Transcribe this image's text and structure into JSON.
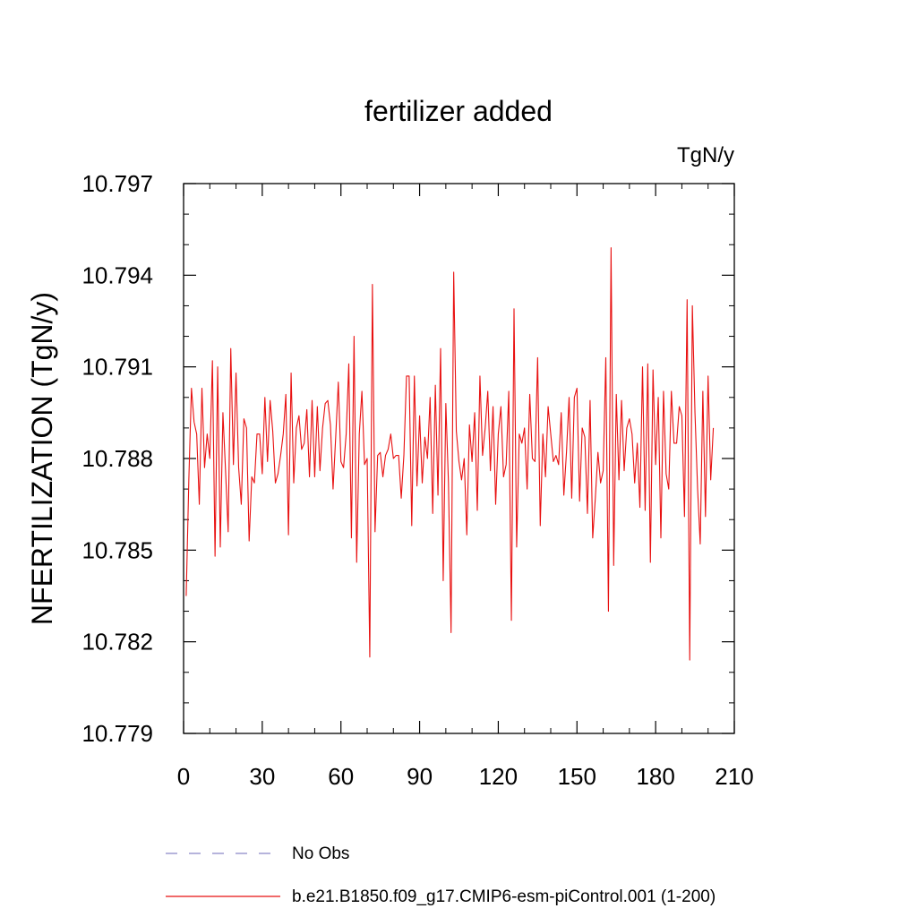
{
  "chart_data": {
    "type": "line",
    "title": "fertilizer added",
    "units": "TgN/y",
    "ylabel": "NFERTILIZATION  (TgN/y)",
    "xlabel": "",
    "xlim": [
      0,
      210
    ],
    "ylim": [
      10.779,
      10.797
    ],
    "xticks": [
      0,
      30,
      60,
      90,
      120,
      150,
      180,
      210
    ],
    "xtick_labels": [
      "0",
      "30",
      "60",
      "90",
      "120",
      "150",
      "180",
      "210"
    ],
    "xminor_step": 10,
    "yticks": [
      10.779,
      10.782,
      10.785,
      10.788,
      10.791,
      10.794,
      10.797
    ],
    "ytick_labels": [
      "10.779",
      "10.782",
      "10.785",
      "10.788",
      "10.791",
      "10.794",
      "10.797"
    ],
    "yminor_step": 0.001,
    "grid": false,
    "legend_position": "bottom",
    "series": [
      {
        "name": "No Obs",
        "color": "#8b86c8",
        "dash": true,
        "x": [],
        "values": []
      },
      {
        "name": "b.e21.B1850.f09_g17.CMIP6-esm-piControl.001 (1-200)",
        "color": "#e81010",
        "dash": false,
        "x_start": 1,
        "x_step": 1,
        "values": [
          10.7835,
          10.7873,
          10.7903,
          10.7892,
          10.7888,
          10.7865,
          10.7903,
          10.7877,
          10.7888,
          10.788,
          10.7912,
          10.7848,
          10.791,
          10.7851,
          10.7895,
          10.7876,
          10.7856,
          10.7916,
          10.7878,
          10.7908,
          10.7877,
          10.7865,
          10.7893,
          10.789,
          10.7853,
          10.7874,
          10.7872,
          10.7888,
          10.7888,
          10.7875,
          10.79,
          10.7879,
          10.7899,
          10.7889,
          10.7872,
          10.7875,
          10.7881,
          10.7888,
          10.7901,
          10.7855,
          10.7908,
          10.7872,
          10.789,
          10.7894,
          10.7883,
          10.7885,
          10.7896,
          10.7874,
          10.7899,
          10.7874,
          10.7897,
          10.7876,
          10.789,
          10.7898,
          10.7899,
          10.7891,
          10.787,
          10.7887,
          10.7905,
          10.7879,
          10.7877,
          10.7888,
          10.7911,
          10.7854,
          10.792,
          10.7846,
          10.7888,
          10.7902,
          10.7878,
          10.788,
          10.7815,
          10.7937,
          10.7856,
          10.7881,
          10.7882,
          10.7874,
          10.7881,
          10.7883,
          10.7888,
          10.788,
          10.7881,
          10.7881,
          10.7867,
          10.7881,
          10.7907,
          10.7907,
          10.7858,
          10.7907,
          10.7871,
          10.7894,
          10.7872,
          10.7887,
          10.788,
          10.79,
          10.7862,
          10.7904,
          10.7868,
          10.7916,
          10.784,
          10.7898,
          10.7872,
          10.7823,
          10.7941,
          10.7889,
          10.7879,
          10.7873,
          10.788,
          10.7855,
          10.7891,
          10.7879,
          10.7895,
          10.7863,
          10.7907,
          10.7881,
          10.789,
          10.7902,
          10.7876,
          10.7897,
          10.7865,
          10.7888,
          10.7897,
          10.7874,
          10.7878,
          10.7902,
          10.7827,
          10.7929,
          10.7851,
          10.7888,
          10.7885,
          10.789,
          10.787,
          10.7901,
          10.788,
          10.7879,
          10.7913,
          10.7858,
          10.7888,
          10.7874,
          10.7897,
          10.7888,
          10.7879,
          10.7881,
          10.7878,
          10.7895,
          10.7868,
          10.7882,
          10.79,
          10.7867,
          10.79,
          10.7903,
          10.7866,
          10.789,
          10.7887,
          10.7862,
          10.7899,
          10.7854,
          10.7867,
          10.7882,
          10.7872,
          10.7876,
          10.7913,
          10.783,
          10.7949,
          10.7845,
          10.7901,
          10.7873,
          10.7899,
          10.7876,
          10.789,
          10.7893,
          10.7888,
          10.7872,
          10.7885,
          10.7864,
          10.791,
          10.7863,
          10.7911,
          10.7846,
          10.7909,
          10.7878,
          10.79,
          10.7854,
          10.7902,
          10.7875,
          10.787,
          10.7902,
          10.7885,
          10.7885,
          10.7897,
          10.7894,
          10.7861,
          10.7932,
          10.7814,
          10.793,
          10.7895,
          10.787,
          10.7852,
          10.7902,
          10.7861,
          10.7907,
          10.7873,
          10.789
        ]
      }
    ]
  }
}
